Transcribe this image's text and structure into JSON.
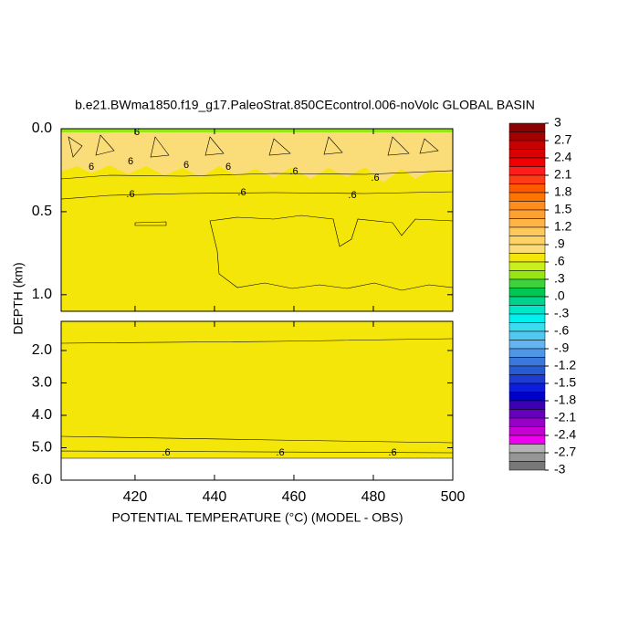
{
  "chart_data": {
    "type": "contour",
    "title": "b.e21.BWma1850.f19_g17.PaleoStrat.850CEcontrol.006-noVolc GLOBAL BASIN",
    "x_label": "POTENTIAL TEMPERATURE (°C) (MODEL - OBS)",
    "y_label": "DEPTH (km)",
    "xlim": [
      401.4,
      500
    ],
    "xticks": [
      420,
      440,
      460,
      480,
      500
    ],
    "panels": [
      {
        "ylim": [
          0,
          1.1
        ],
        "yticks": [
          {
            "value": 0,
            "label": "0.0"
          },
          {
            "value": 0.5,
            "label": "0.5"
          },
          {
            "value": 1,
            "label": "1.0"
          }
        ]
      },
      {
        "ylim": [
          1.1,
          6
        ],
        "yticks": [
          {
            "value": 2,
            "label": "2.0"
          },
          {
            "value": 3,
            "label": "3.0"
          },
          {
            "value": 4,
            "label": "4.0"
          },
          {
            "value": 5,
            "label": "5.0"
          },
          {
            "value": 6,
            "label": "6.0"
          }
        ]
      }
    ],
    "contour_labels": [
      "6",
      "6",
      "6",
      "6",
      "6",
      ".6",
      ".6",
      ".6",
      ".6",
      ".6",
      ".6",
      ".6",
      ".6"
    ],
    "colorbar": {
      "levels": [
        3,
        2.7,
        2.4,
        2.1,
        1.8,
        1.5,
        1.2,
        {
          "value": 0.9,
          "label": ".9"
        },
        {
          "value": 0.6,
          "label": ".6"
        },
        {
          "value": 0.3,
          "label": ".3"
        },
        {
          "value": 0,
          "label": ".0"
        },
        {
          "value": -0.3,
          "label": "-.3"
        },
        {
          "value": -0.6,
          "label": "-.6"
        },
        {
          "value": -0.9,
          "label": "-.9"
        },
        -1.2,
        -1.5,
        -1.8,
        -2.1,
        -2.4,
        -2.7,
        -3
      ],
      "colors": [
        "#8b0000",
        "#a50000",
        "#c80000",
        "#dc0000",
        "#f00000",
        "#ff1e1e",
        "#ff3c14",
        "#ff5a00",
        "#ff7300",
        "#ff8c1e",
        "#ffa032",
        "#ffb446",
        "#ffc85a",
        "#ffd264",
        "#fadc78",
        "#f5e60a",
        "#c8f01e",
        "#96e614",
        "#3cd23c",
        "#00c850",
        "#00d28c",
        "#00e6c8",
        "#00f0f0",
        "#3cdcf0",
        "#50c8f0",
        "#64b4f0",
        "#5096e6",
        "#3c78dc",
        "#285ad2",
        "#1e3cd2",
        "#0a1edc",
        "#0000c8",
        "#3c00b4",
        "#6400be",
        "#9600c8",
        "#c800d2",
        "#f000f0",
        "#b4b4b4",
        "#969696",
        "#787878"
      ]
    }
  }
}
